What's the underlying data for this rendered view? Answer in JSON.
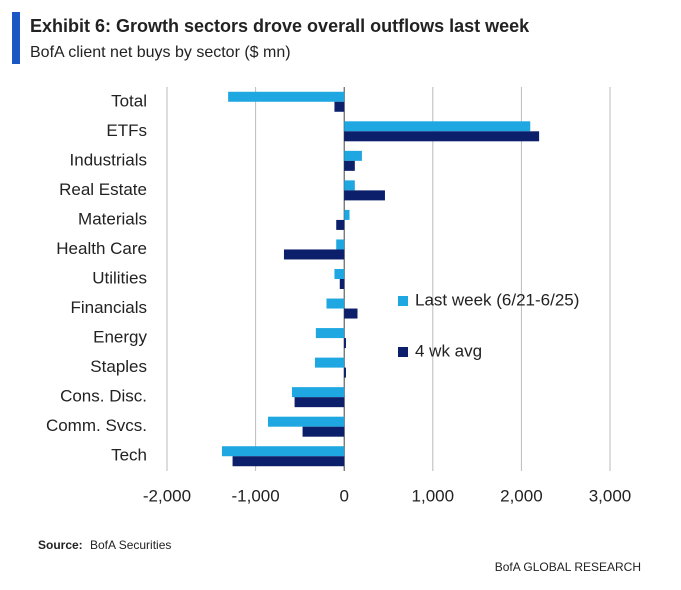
{
  "chart_data": {
    "type": "bar",
    "orientation": "horizontal",
    "title": "Exhibit 6: Growth sectors drove overall outflows last week",
    "subtitle": "BofA client net buys by sector ($ mn)",
    "categories": [
      "Total",
      "ETFs",
      "Industrials",
      "Real Estate",
      "Materials",
      "Health Care",
      "Utilities",
      "Financials",
      "Energy",
      "Staples",
      "Cons. Disc.",
      "Comm. Svcs.",
      "Tech"
    ],
    "series": [
      {
        "name": "Last week (6/21-6/25)",
        "color": "#1ea7e1",
        "values": [
          -1310,
          2100,
          200,
          120,
          60,
          -90,
          -110,
          -200,
          -320,
          -330,
          -590,
          -860,
          -1380
        ]
      },
      {
        "name": "4 wk avg",
        "color": "#0b1f6b",
        "values": [
          -110,
          2200,
          120,
          460,
          -90,
          -680,
          -50,
          150,
          20,
          20,
          -560,
          -470,
          -1260
        ]
      }
    ],
    "xlim": [
      -2000,
      3000
    ],
    "xticks": [
      {
        "value": -2000,
        "label": "-2,000"
      },
      {
        "value": -1000,
        "label": "-1,000"
      },
      0,
      {
        "value": 1000,
        "label": "1,000"
      },
      {
        "value": 2000,
        "label": "2,000"
      },
      {
        "value": 3000,
        "label": "3,000"
      }
    ],
    "grid": true,
    "legend": "right"
  },
  "source": {
    "label": "Source:",
    "text": "BofA Securities"
  },
  "footer": "BofA GLOBAL RESEARCH"
}
